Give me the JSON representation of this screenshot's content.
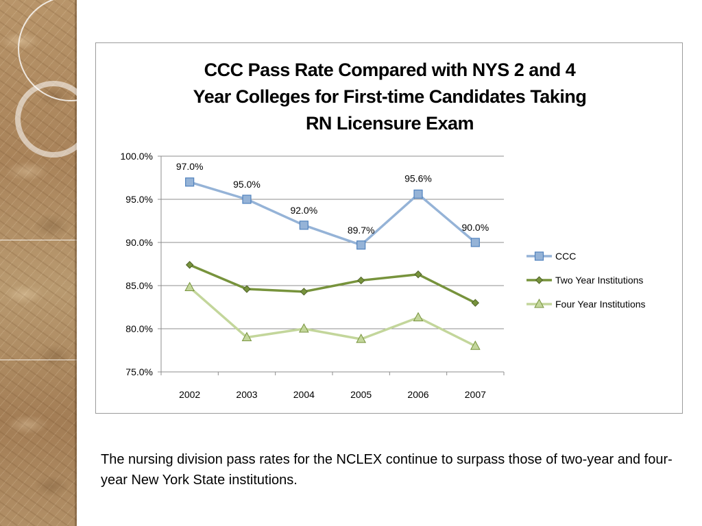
{
  "chart_data": {
    "type": "line",
    "title_lines": [
      "CCC Pass Rate Compared with NYS 2 and 4",
      "Year Colleges for First-time Candidates Taking",
      "RN Licensure Exam"
    ],
    "categories": [
      "2002",
      "2003",
      "2004",
      "2005",
      "2006",
      "2007"
    ],
    "ylim": [
      75,
      100
    ],
    "yticks": [
      75,
      80,
      85,
      90,
      95,
      100
    ],
    "ytick_labels": [
      "75.0%",
      "80.0%",
      "85.0%",
      "90.0%",
      "95.0%",
      "100.0%"
    ],
    "grid": true,
    "legend_position": "right",
    "series": [
      {
        "name": "CCC",
        "values": [
          97.0,
          95.0,
          92.0,
          89.7,
          95.6,
          90.0
        ],
        "data_labels": [
          "97.0%",
          "95.0%",
          "92.0%",
          "89.7%",
          "95.6%",
          "90.0%"
        ],
        "color": "#95b3d7",
        "marker_color": "#4f81bd",
        "marker": "square"
      },
      {
        "name": "Two Year Institutions",
        "values": [
          87.4,
          84.6,
          84.3,
          85.6,
          86.3,
          83.0
        ],
        "color": "#77933c",
        "marker_color": "#4f6228",
        "marker": "diamond"
      },
      {
        "name": "Four Year Institutions",
        "values": [
          84.8,
          79.0,
          80.0,
          78.8,
          81.3,
          78.0
        ],
        "color": "#c3d69b",
        "marker_color": "#77933c",
        "marker": "triangle"
      }
    ]
  },
  "caption": "The nursing division pass rates for the NCLEX continue to surpass those of two-year and four-year New York State institutions."
}
